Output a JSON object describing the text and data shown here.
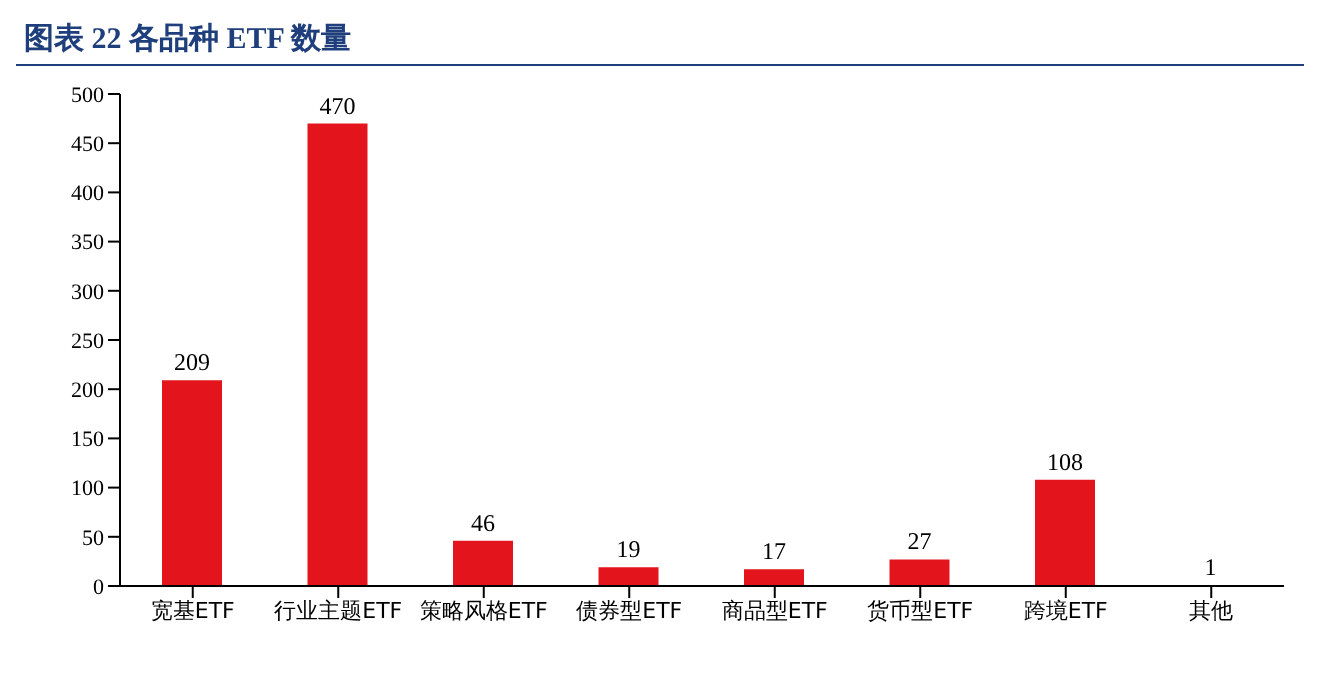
{
  "chart_data": {
    "type": "bar",
    "title": "图表 22 各品种 ETF 数量",
    "categories": [
      "宽基ETF",
      "行业主题ETF",
      "策略风格ETF",
      "债券型ETF",
      "商品型ETF",
      "货币型ETF",
      "跨境ETF",
      "其他"
    ],
    "values": [
      209,
      470,
      46,
      19,
      17,
      27,
      108,
      1
    ],
    "color": "#e3141c",
    "ylim": [
      0,
      500
    ],
    "yticks": [
      0,
      50,
      100,
      150,
      200,
      250,
      300,
      350,
      400,
      450,
      500
    ],
    "data_labels": true,
    "grid": false,
    "legend": false
  }
}
